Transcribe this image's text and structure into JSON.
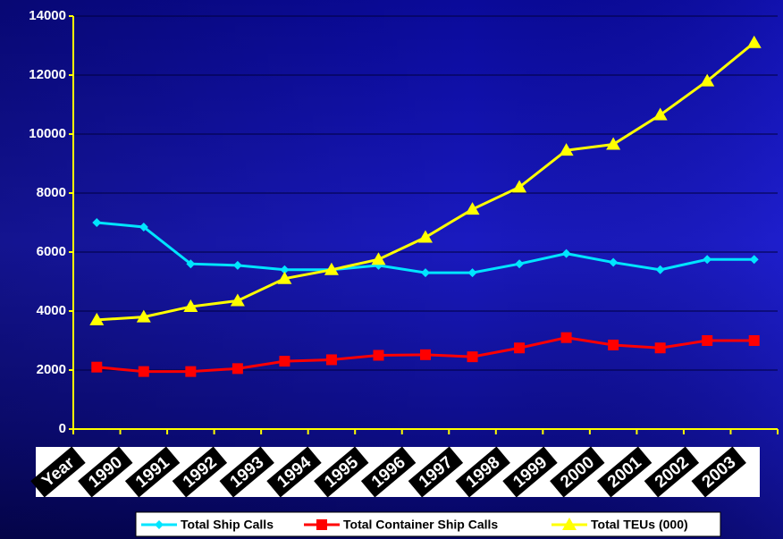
{
  "chart_data": {
    "type": "line",
    "categories": [
      "Year",
      "1990",
      "1991",
      "1992",
      "1993",
      "1994",
      "1995",
      "1996",
      "1997",
      "1998",
      "1999",
      "2000",
      "2001",
      "2002",
      "2003"
    ],
    "series": [
      {
        "name": "Total Ship Calls",
        "color": "#00e5ff",
        "marker": "diamond",
        "values": [
          7000,
          6850,
          5600,
          5550,
          5400,
          5400,
          5550,
          5300,
          5300,
          5600,
          5950,
          5650,
          5400,
          5750,
          5750
        ]
      },
      {
        "name": "Total Container Ship Calls",
        "color": "#ff0000",
        "marker": "square",
        "values": [
          2100,
          1950,
          1950,
          2050,
          2300,
          2350,
          2500,
          2520,
          2450,
          2750,
          3100,
          2850,
          2750,
          3000,
          3000
        ]
      },
      {
        "name": "Total TEUs (000)",
        "color": "#ffff00",
        "marker": "triangle",
        "values": [
          3700,
          3800,
          4150,
          4350,
          5100,
          5400,
          5750,
          6500,
          7450,
          8200,
          9450,
          9650,
          10650,
          11800,
          13100
        ]
      }
    ],
    "ylim": [
      0,
      14000
    ],
    "yticks": [
      0,
      2000,
      4000,
      6000,
      8000,
      10000,
      12000,
      14000
    ],
    "grid": true,
    "legend": "bottom"
  }
}
